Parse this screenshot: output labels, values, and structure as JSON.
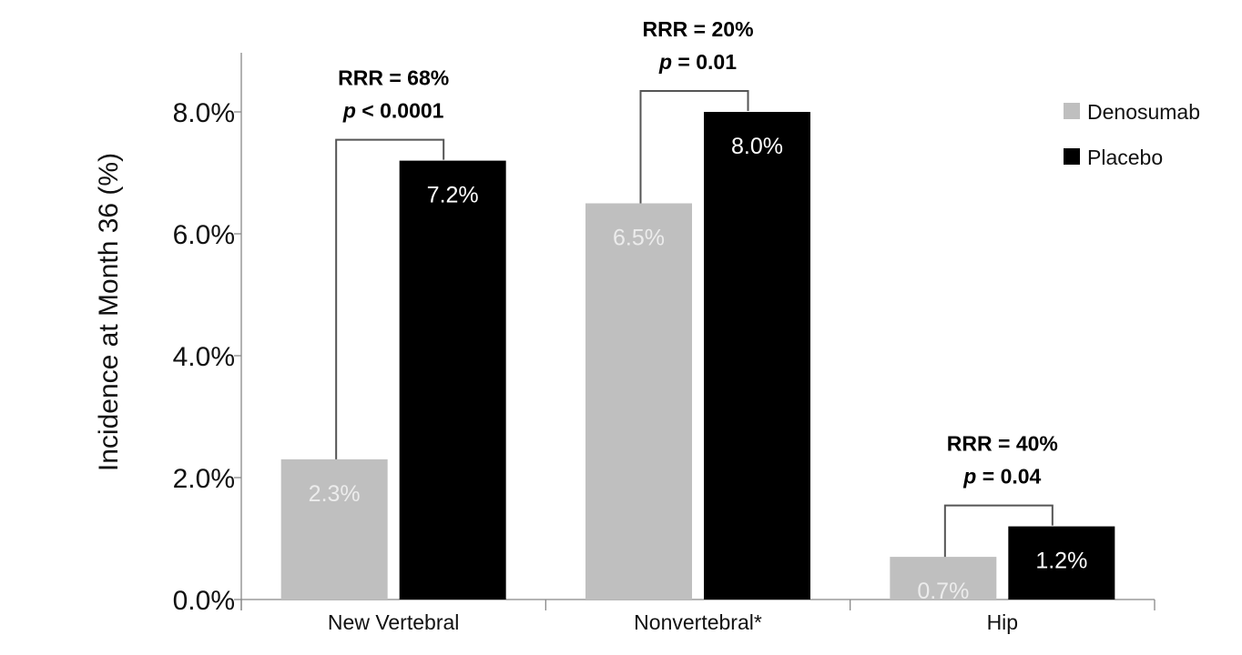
{
  "chart_data": {
    "type": "bar",
    "ylabel": "Incidence at Month 36 (%)",
    "xlabel": "",
    "ylim": [
      0,
      8.9
    ],
    "yticks": [
      0,
      2,
      4,
      6,
      8
    ],
    "ytick_labels": [
      "0.0%",
      "2.0%",
      "4.0%",
      "6.0%",
      "8.0%"
    ],
    "categories": [
      "New Vertebral",
      "Nonvertebral*",
      "Hip"
    ],
    "series": [
      {
        "name": "Denosumab",
        "color": "#bfbfbf",
        "label_color": "#ececec",
        "values": [
          2.3,
          6.5,
          0.7
        ],
        "labels": [
          "2.3%",
          "6.5%",
          "0.7%"
        ]
      },
      {
        "name": "Placebo",
        "color": "#000000",
        "label_color": "#ffffff",
        "values": [
          7.2,
          8.0,
          1.2
        ],
        "labels": [
          "7.2%",
          "8.0%",
          "1.2%"
        ]
      }
    ],
    "annotations": [
      {
        "rrr": "RRR = 68%",
        "p_symbol": "p",
        "p_rest": " < 0.0001"
      },
      {
        "rrr": "RRR = 20%",
        "p_symbol": "p",
        "p_rest": " = 0.01"
      },
      {
        "rrr": "RRR = 40%",
        "p_symbol": "p",
        "p_rest": " = 0.04"
      }
    ],
    "grid": false,
    "legend_position": "top-right"
  }
}
